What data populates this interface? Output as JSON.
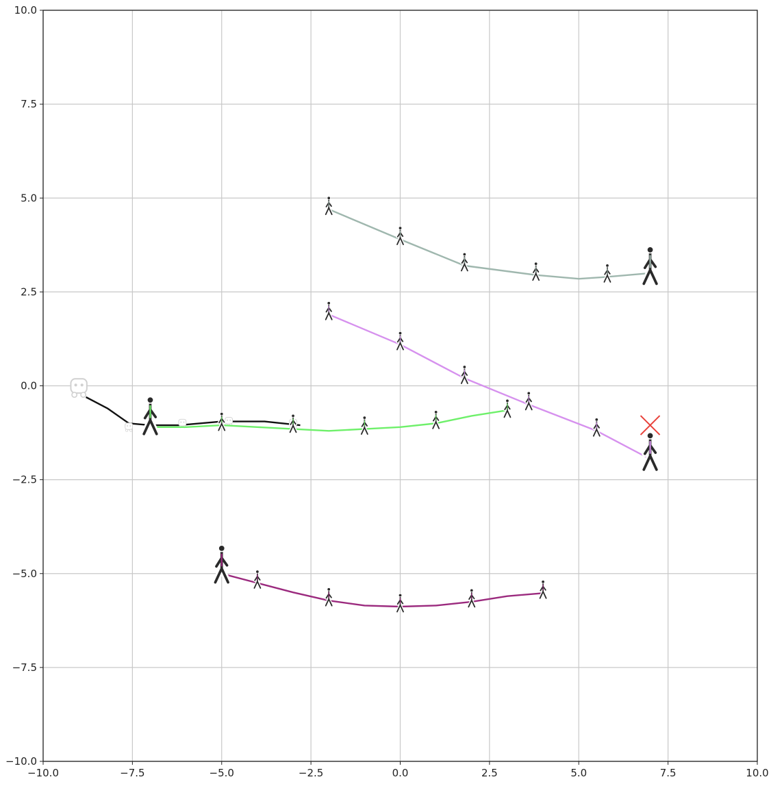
{
  "chart_data": {
    "type": "scatter",
    "xlim": [
      -10.0,
      10.0
    ],
    "ylim": [
      -10.0,
      10.0
    ],
    "grid": true,
    "x_ticks": [
      "−10.0",
      "−7.5",
      "−5.0",
      "−2.5",
      "0.0",
      "2.5",
      "5.0",
      "7.5",
      "10.0"
    ],
    "y_ticks": [
      "10.0",
      "7.5",
      "5.0",
      "2.5",
      "0.0",
      "−2.5",
      "−5.0",
      "−7.5",
      "−10.0"
    ],
    "x_tick_values": [
      -10,
      -7.5,
      -5,
      -2.5,
      0,
      2.5,
      5,
      7.5,
      10
    ],
    "y_tick_values": [
      10,
      7.5,
      5,
      2.5,
      0,
      -2.5,
      -5,
      -7.5,
      -10
    ],
    "series": [
      {
        "kind": "robot",
        "color": "#111111",
        "icon": "robot-icon",
        "path": [
          [
            -8.8,
            -0.3
          ],
          [
            -8.2,
            -0.6
          ],
          [
            -7.6,
            -1.0
          ],
          [
            -7.0,
            -1.05
          ],
          [
            -6.2,
            -1.05
          ],
          [
            -5.0,
            -0.95
          ],
          [
            -3.8,
            -0.95
          ],
          [
            -2.8,
            -1.05
          ]
        ],
        "markers": [
          [
            -7.6,
            -1.1
          ],
          [
            -6.1,
            -1.0
          ],
          [
            -4.8,
            -0.95
          ],
          [
            -3.0,
            -1.0
          ]
        ],
        "current": [
          -9.0,
          -0.05
        ]
      },
      {
        "kind": "pedestrian",
        "color": "#6ef06a",
        "icon": "pedestrian-icon",
        "path": [
          [
            -7.0,
            -1.1
          ],
          [
            -6.0,
            -1.1
          ],
          [
            -5.0,
            -1.05
          ],
          [
            -4.0,
            -1.1
          ],
          [
            -3.0,
            -1.15
          ],
          [
            -2.0,
            -1.2
          ],
          [
            -1.0,
            -1.15
          ],
          [
            0.0,
            -1.1
          ],
          [
            1.0,
            -1.0
          ],
          [
            2.0,
            -0.8
          ],
          [
            3.0,
            -0.65
          ]
        ],
        "markers": [
          [
            -5.0,
            -1.05
          ],
          [
            -3.0,
            -1.1
          ],
          [
            -1.0,
            -1.15
          ],
          [
            1.0,
            -1.0
          ],
          [
            3.0,
            -0.7
          ]
        ],
        "current": [
          -7.0,
          -1.0
        ]
      },
      {
        "kind": "pedestrian",
        "color": "#9fb7ae",
        "icon": "pedestrian-icon",
        "path": [
          [
            -2.0,
            4.7
          ],
          [
            0.0,
            3.9
          ],
          [
            1.8,
            3.2
          ],
          [
            3.8,
            2.95
          ],
          [
            5.0,
            2.85
          ],
          [
            5.8,
            2.9
          ],
          [
            7.0,
            3.0
          ]
        ],
        "markers": [
          [
            -2.0,
            4.7
          ],
          [
            0.0,
            3.9
          ],
          [
            1.8,
            3.2
          ],
          [
            3.8,
            2.95
          ],
          [
            5.8,
            2.9
          ]
        ],
        "current": [
          7.0,
          3.0
        ]
      },
      {
        "kind": "pedestrian",
        "color": "#d691ee",
        "icon": "pedestrian-icon",
        "path": [
          [
            -2.0,
            1.9
          ],
          [
            0.0,
            1.1
          ],
          [
            1.8,
            0.2
          ],
          [
            3.6,
            -0.5
          ],
          [
            5.5,
            -1.2
          ],
          [
            7.0,
            -1.95
          ]
        ],
        "markers": [
          [
            -2.0,
            1.9
          ],
          [
            0.0,
            1.1
          ],
          [
            1.8,
            0.2
          ],
          [
            3.6,
            -0.5
          ],
          [
            5.5,
            -1.2
          ]
        ],
        "current": [
          7.0,
          -1.95
        ]
      },
      {
        "kind": "pedestrian",
        "color": "#9b2a7e",
        "icon": "pedestrian-icon",
        "path": [
          [
            -5.0,
            -5.0
          ],
          [
            -4.0,
            -5.25
          ],
          [
            -3.0,
            -5.5
          ],
          [
            -2.0,
            -5.72
          ],
          [
            -1.0,
            -5.85
          ],
          [
            0.0,
            -5.88
          ],
          [
            1.0,
            -5.85
          ],
          [
            2.0,
            -5.75
          ],
          [
            3.0,
            -5.6
          ],
          [
            4.0,
            -5.52
          ]
        ],
        "markers": [
          [
            -4.0,
            -5.25
          ],
          [
            -2.0,
            -5.72
          ],
          [
            0.0,
            -5.88
          ],
          [
            2.0,
            -5.75
          ],
          [
            4.0,
            -5.52
          ]
        ],
        "current": [
          -5.0,
          -4.95
        ]
      }
    ],
    "goal": {
      "x": 7.0,
      "y": -1.05,
      "color": "#e8413a",
      "icon": "goal-cross-icon"
    }
  }
}
